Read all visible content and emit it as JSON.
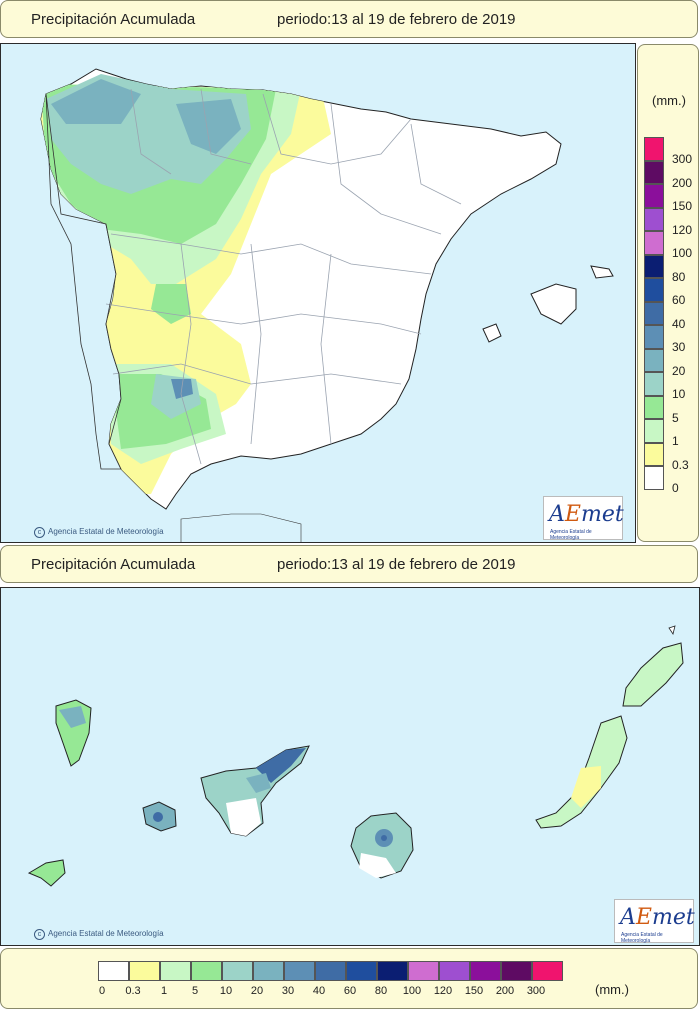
{
  "header_top": {
    "title": "Precipitación Acumulada",
    "period": "periodo:13 al 19 de febrero de 2019"
  },
  "header_bottom": {
    "title": "Precipitación Acumulada",
    "period": "periodo:13 al 19 de febrero de 2019"
  },
  "credit": "Agencia Estatal de Meteorología",
  "logo": {
    "text_a": "A",
    "text_e": "E",
    "text_met": "met",
    "subtitle": "Agencia Estatal de Meteorología"
  },
  "legend": {
    "unit": "(mm.)",
    "bins": [
      {
        "label": "0",
        "color": "#ffffff"
      },
      {
        "label": "0.3",
        "color": "#fbfb9c"
      },
      {
        "label": "1",
        "color": "#c8f7c5"
      },
      {
        "label": "5",
        "color": "#96e895"
      },
      {
        "label": "10",
        "color": "#9cd3c8"
      },
      {
        "label": "20",
        "color": "#7ab2bf"
      },
      {
        "label": "30",
        "color": "#5d8fb5"
      },
      {
        "label": "40",
        "color": "#3f6ca5"
      },
      {
        "label": "60",
        "color": "#1f4e9e"
      },
      {
        "label": "80",
        "color": "#0b1e72"
      },
      {
        "label": "100",
        "color": "#cf6dd0"
      },
      {
        "label": "120",
        "color": "#9e4fd0"
      },
      {
        "label": "150",
        "color": "#8b0f9b"
      },
      {
        "label": "200",
        "color": "#5e0b63"
      },
      {
        "label": "300",
        "color": "#f0146e"
      }
    ]
  }
}
